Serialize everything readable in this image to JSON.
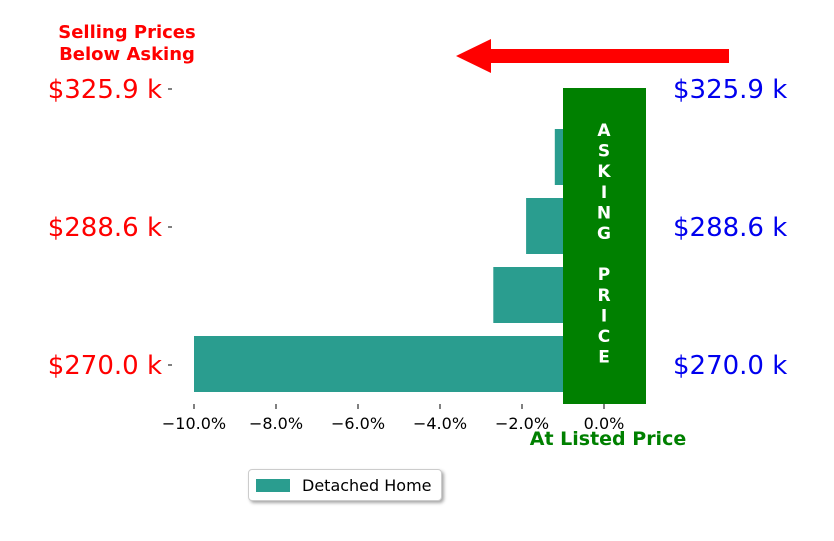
{
  "chart_data": {
    "type": "bar",
    "orientation": "horizontal",
    "series": [
      {
        "name": "Detached Home",
        "color": "#2a9d8f",
        "values": [
          -10.0,
          -2.7,
          -1.9,
          -1.2
        ]
      }
    ],
    "xlim": [
      -10.75,
      0.9
    ],
    "x_ticks": [
      -10,
      -8,
      -6,
      -4,
      -2,
      0
    ],
    "x_tick_labels": [
      "−10.0%",
      "−8.0%",
      "−6.0%",
      "−4.0%",
      "−2.0%",
      "0.0%"
    ],
    "y_tick_labels_left": [
      "$270.0 k",
      "$288.6 k",
      "$325.9 k"
    ],
    "y_tick_labels_right": [
      "$270.0 k",
      "$288.6 k",
      "$325.9 k"
    ],
    "left_label_color": "#ff0000",
    "right_label_color": "#0000ee",
    "annotations": {
      "top_left": [
        "Selling Prices",
        "Below Asking"
      ],
      "bottom": "At Listed Price",
      "band_text": [
        "A",
        "S",
        "K",
        "I",
        "N",
        "G",
        "",
        "P",
        "R",
        "I",
        "C",
        "E"
      ]
    },
    "band_color": "#008000",
    "arrow_color": "#ff0000",
    "legend_position": "bottom-center"
  }
}
